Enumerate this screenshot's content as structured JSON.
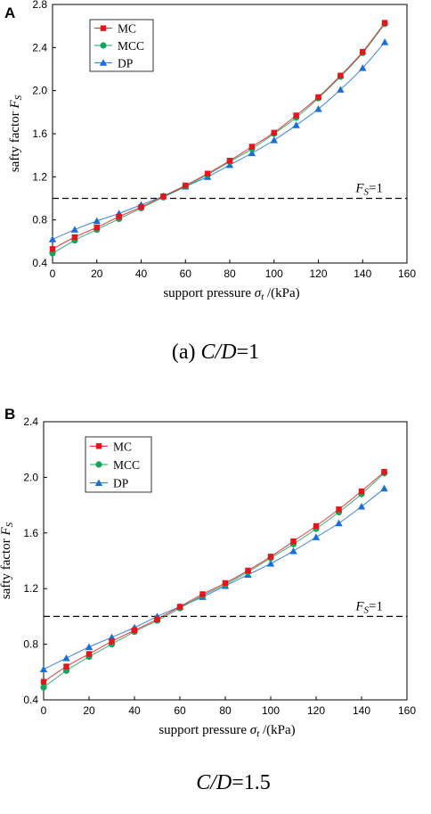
{
  "chart_data": [
    {
      "type": "line",
      "panel_letter": "A",
      "caption": "(a) C/D=1",
      "xlabel": "support pressure σt /(kPa)",
      "ylabel": "safty factor FS",
      "xlim": [
        0,
        160
      ],
      "ylim": [
        0.4,
        2.8
      ],
      "xticks": [
        0,
        20,
        40,
        60,
        80,
        100,
        120,
        140,
        160
      ],
      "yticks": [
        0.4,
        0.8,
        1.2,
        1.6,
        2.0,
        2.4,
        2.8
      ],
      "ytick_labels": [
        "0.4",
        "0.8",
        "1.2",
        "1.6",
        "2.0",
        "2.4",
        "2.8"
      ],
      "reference_line": {
        "y": 1.0,
        "label": "FS=1"
      },
      "legend_position": "top-left",
      "x": [
        0,
        10,
        20,
        30,
        40,
        50,
        60,
        70,
        80,
        90,
        100,
        110,
        120,
        130,
        140,
        150
      ],
      "series": [
        {
          "name": "MC",
          "color": "#e8141b",
          "marker": "square",
          "values": [
            0.53,
            0.64,
            0.73,
            0.83,
            0.92,
            1.02,
            1.12,
            1.23,
            1.35,
            1.48,
            1.61,
            1.77,
            1.94,
            2.14,
            2.36,
            2.63
          ]
        },
        {
          "name": "MCC",
          "color": "#16a35a",
          "marker": "circle",
          "values": [
            0.49,
            0.61,
            0.71,
            0.81,
            0.91,
            1.01,
            1.11,
            1.22,
            1.34,
            1.46,
            1.6,
            1.75,
            1.93,
            2.13,
            2.35,
            2.62
          ]
        },
        {
          "name": "DP",
          "color": "#1a6fd6",
          "marker": "triangle",
          "values": [
            0.62,
            0.71,
            0.79,
            0.86,
            0.94,
            1.02,
            1.11,
            1.2,
            1.31,
            1.42,
            1.54,
            1.68,
            1.83,
            2.01,
            2.21,
            2.45
          ]
        }
      ]
    },
    {
      "type": "line",
      "panel_letter": "B",
      "caption": "C/D=1.5",
      "xlabel": "support pressure σt /(kPa)",
      "ylabel": "safty factor FS",
      "xlim": [
        0,
        160
      ],
      "ylim": [
        0.4,
        2.4
      ],
      "xticks": [
        0,
        20,
        40,
        60,
        80,
        100,
        120,
        140,
        160
      ],
      "yticks": [
        0.4,
        0.8,
        1.2,
        1.6,
        2.0,
        2.4
      ],
      "ytick_labels": [
        "0.4",
        "0.8",
        "1.2",
        "1.6",
        "2.0",
        "2.4"
      ],
      "reference_line": {
        "y": 1.0,
        "label": "FS=1"
      },
      "legend_position": "top-left",
      "x": [
        0,
        10,
        20,
        30,
        40,
        50,
        60,
        70,
        80,
        90,
        100,
        110,
        120,
        130,
        140,
        150
      ],
      "series": [
        {
          "name": "MC",
          "color": "#e8141b",
          "marker": "square",
          "values": [
            0.53,
            0.64,
            0.73,
            0.82,
            0.9,
            0.98,
            1.07,
            1.16,
            1.24,
            1.33,
            1.43,
            1.54,
            1.65,
            1.77,
            1.9,
            2.04
          ]
        },
        {
          "name": "MCC",
          "color": "#16a35a",
          "marker": "circle",
          "values": [
            0.49,
            0.61,
            0.71,
            0.8,
            0.89,
            0.97,
            1.06,
            1.15,
            1.23,
            1.32,
            1.42,
            1.52,
            1.63,
            1.75,
            1.88,
            2.03
          ]
        },
        {
          "name": "DP",
          "color": "#1a6fd6",
          "marker": "triangle",
          "values": [
            0.62,
            0.7,
            0.78,
            0.85,
            0.92,
            1.0,
            1.07,
            1.14,
            1.22,
            1.3,
            1.38,
            1.47,
            1.57,
            1.67,
            1.79,
            1.92
          ]
        }
      ]
    }
  ]
}
